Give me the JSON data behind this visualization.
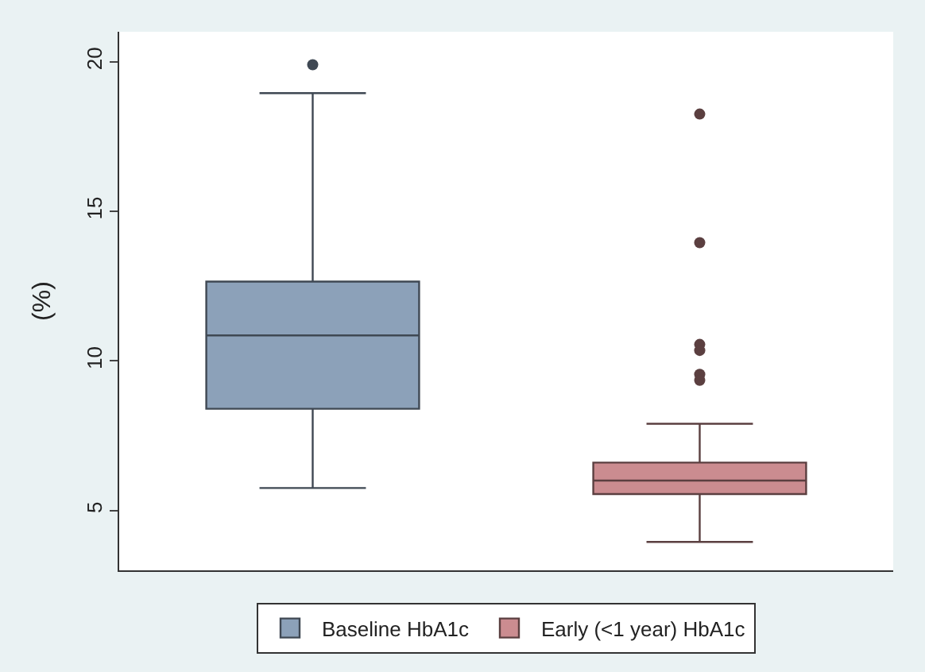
{
  "chart_data": {
    "type": "box",
    "ylabel": "(%)",
    "categories": [
      null,
      null
    ],
    "ylim": [
      3,
      21
    ],
    "yticks": [
      5,
      10,
      15,
      20
    ],
    "legend": "bottom",
    "series": [
      {
        "name": "Baseline HbA1c",
        "color": "#8ca1b9",
        "boxes": [
          {
            "low": 5.75,
            "q1": 8.4,
            "median": 10.85,
            "q3": 12.65,
            "high": 18.95,
            "outliers": [
              19.9
            ]
          },
          null
        ]
      },
      {
        "name": "Early (<1 year) HbA1c",
        "color": "#cb8c90",
        "boxes": [
          null,
          {
            "low": 3.95,
            "q1": 5.55,
            "median": 6.0,
            "q3": 6.6,
            "high": 7.9,
            "outliers": [
              18.25,
              13.95,
              10.55,
              10.35,
              9.55,
              9.35
            ]
          }
        ]
      }
    ]
  }
}
